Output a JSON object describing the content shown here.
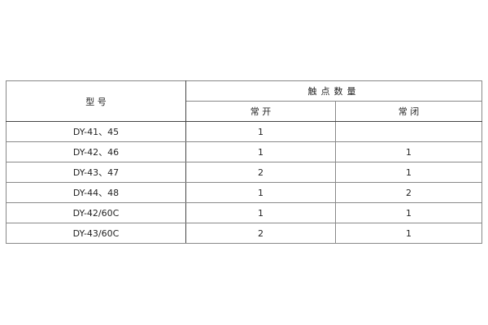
{
  "table": {
    "header": {
      "model": "型 号",
      "contact_count": "触点数量",
      "normally_open": "常 开",
      "normally_closed": "常 闭"
    },
    "rows": [
      {
        "model": "DY-41、45",
        "no": "1",
        "nc": ""
      },
      {
        "model": "DY-42、46",
        "no": "1",
        "nc": "1"
      },
      {
        "model": "DY-43、47",
        "no": "2",
        "nc": "1"
      },
      {
        "model": "DY-44、48",
        "no": "1",
        "nc": "2"
      },
      {
        "model": "DY-42/60C",
        "no": "1",
        "nc": "1"
      },
      {
        "model": "DY-43/60C",
        "no": "2",
        "nc": "1"
      }
    ]
  }
}
